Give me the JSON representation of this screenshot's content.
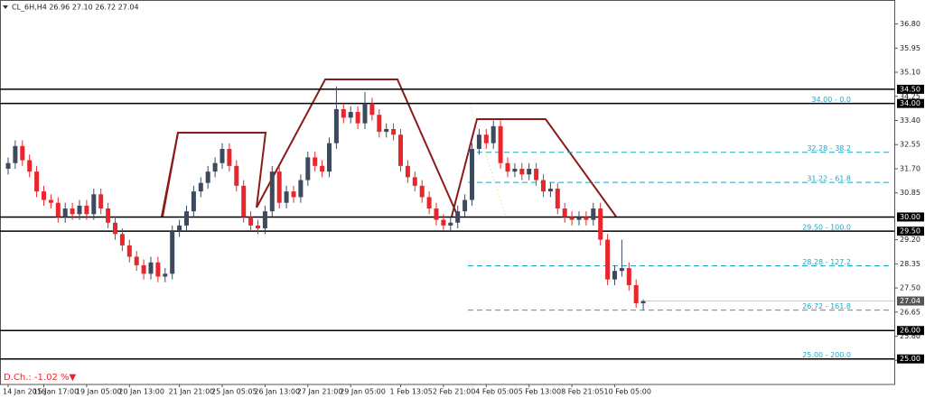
{
  "chart_data": {
    "type": "candlestick",
    "title": "CL_6H,H4  26.96 27.10 26.72 27.04",
    "annotation": "D.Ch.: -1.02 %▼",
    "categories": [
      "14 Jan 2016",
      null,
      null,
      null,
      null,
      "15 Jan 17:00",
      null,
      null,
      null,
      null,
      null,
      "19 Jan 05:00",
      null,
      null,
      null,
      null,
      null,
      "20 Jan 13:00",
      null,
      null,
      null,
      null,
      null,
      null,
      "21 Jan 21:00",
      null,
      null,
      null,
      null,
      null,
      "25 Jan 05:05",
      null,
      null,
      null,
      null,
      null,
      "26 Jan 13:00",
      null,
      null,
      null,
      null,
      null,
      "27 Jan 21:00",
      null,
      null,
      null,
      null,
      null,
      "29 Jan 05:00",
      null,
      null,
      null,
      null,
      null,
      null,
      "1 Feb 13:05",
      null,
      null,
      null,
      null,
      null,
      "2 Feb 21:00",
      null,
      null,
      null,
      null,
      null,
      "4 Feb 05:00",
      null,
      null,
      null,
      null,
      null,
      "5 Feb 13:00",
      null,
      null,
      null,
      null,
      null,
      "8 Feb 21:05",
      null,
      null,
      null,
      null,
      null,
      "10 Feb 05:00",
      null,
      null,
      null,
      null
    ],
    "open": [
      31.7,
      31.9,
      32.5,
      32.0,
      31.6,
      30.9,
      30.6,
      30.5,
      30.0,
      30.3,
      30.1,
      30.4,
      30.1,
      30.8,
      30.3,
      29.8,
      29.4,
      29.0,
      28.6,
      28.3,
      28.0,
      28.4,
      27.9,
      28.0,
      29.5,
      29.7,
      30.2,
      30.9,
      31.2,
      31.6,
      31.9,
      32.4,
      31.8,
      31.1,
      30.0,
      29.7,
      29.6,
      30.2,
      31.6,
      30.5,
      30.9,
      30.7,
      31.3,
      32.1,
      31.8,
      31.6,
      32.6,
      33.8,
      33.5,
      33.7,
      33.3,
      34.0,
      33.6,
      33.0,
      33.1,
      32.9,
      31.8,
      31.4,
      31.1,
      30.7,
      30.3,
      29.9,
      29.7,
      29.8,
      30.2,
      30.6,
      32.4,
      32.9,
      32.6,
      33.2,
      31.9,
      31.6,
      31.7,
      31.5,
      31.7,
      31.3,
      30.9,
      31.0,
      30.3,
      30.0,
      29.9,
      30.0,
      29.9,
      30.3,
      29.2,
      27.8,
      28.1,
      28.2,
      27.6,
      26.96
    ],
    "high": [
      32.1,
      32.7,
      32.7,
      32.2,
      31.8,
      31.1,
      30.8,
      30.7,
      30.5,
      30.5,
      30.6,
      30.6,
      31.0,
      31.0,
      30.5,
      30.0,
      29.6,
      29.2,
      28.8,
      28.5,
      28.6,
      28.6,
      28.2,
      29.7,
      29.9,
      30.4,
      31.1,
      31.4,
      31.8,
      32.1,
      32.6,
      32.6,
      32.0,
      31.3,
      30.2,
      29.9,
      30.4,
      31.8,
      31.8,
      31.1,
      31.1,
      31.5,
      32.3,
      32.3,
      32.0,
      32.8,
      34.6,
      34.0,
      33.9,
      33.9,
      34.4,
      34.2,
      33.8,
      33.3,
      33.3,
      33.1,
      32.0,
      31.6,
      31.3,
      30.9,
      30.5,
      30.1,
      30.0,
      30.4,
      30.8,
      32.6,
      33.1,
      33.1,
      33.4,
      33.4,
      32.1,
      31.9,
      31.9,
      31.9,
      31.9,
      31.5,
      31.2,
      31.2,
      30.5,
      30.2,
      30.2,
      30.2,
      30.5,
      30.5,
      29.4,
      28.3,
      29.2,
      28.4,
      27.8,
      27.1
    ],
    "low": [
      31.5,
      31.7,
      31.8,
      31.4,
      30.7,
      30.4,
      30.3,
      29.8,
      29.8,
      29.9,
      29.9,
      29.9,
      29.9,
      30.1,
      29.6,
      29.2,
      28.8,
      28.4,
      28.1,
      27.8,
      27.8,
      27.7,
      27.7,
      27.8,
      29.3,
      29.5,
      30.0,
      30.7,
      31.0,
      31.4,
      31.7,
      31.6,
      30.9,
      29.8,
      29.5,
      29.4,
      29.4,
      30.0,
      30.3,
      30.3,
      30.5,
      30.5,
      31.1,
      31.6,
      31.4,
      31.4,
      32.4,
      33.3,
      33.3,
      33.1,
      33.1,
      33.4,
      32.8,
      32.8,
      32.7,
      31.6,
      31.2,
      30.9,
      30.5,
      30.1,
      29.7,
      29.5,
      29.5,
      29.6,
      30.0,
      30.4,
      32.2,
      32.4,
      32.4,
      31.7,
      31.4,
      31.4,
      31.3,
      31.3,
      31.1,
      30.7,
      30.7,
      30.1,
      29.8,
      29.7,
      29.7,
      29.7,
      29.7,
      29.0,
      27.6,
      27.6,
      27.9,
      27.4,
      26.8,
      26.72
    ],
    "close": [
      31.9,
      32.5,
      32.0,
      31.6,
      30.9,
      30.6,
      30.5,
      30.0,
      30.3,
      30.1,
      30.4,
      30.1,
      30.8,
      30.3,
      29.8,
      29.4,
      29.0,
      28.6,
      28.3,
      28.0,
      28.4,
      27.9,
      28.0,
      29.5,
      29.7,
      30.2,
      30.9,
      31.2,
      31.6,
      31.9,
      32.4,
      31.8,
      31.1,
      30.0,
      29.7,
      29.6,
      30.2,
      31.6,
      30.5,
      30.9,
      30.7,
      31.3,
      32.1,
      31.8,
      31.6,
      32.6,
      33.8,
      33.5,
      33.7,
      33.3,
      34.0,
      33.6,
      33.0,
      33.1,
      32.9,
      31.8,
      31.4,
      31.1,
      30.7,
      30.3,
      29.9,
      29.7,
      29.8,
      30.2,
      30.6,
      32.4,
      32.9,
      32.6,
      33.2,
      31.9,
      31.6,
      31.7,
      31.5,
      31.7,
      31.3,
      30.9,
      31.0,
      30.3,
      30.0,
      29.9,
      30.0,
      29.9,
      30.3,
      29.2,
      27.8,
      28.1,
      28.2,
      27.6,
      26.96,
      27.04
    ],
    "up_color": "#3d4a5c",
    "down_color": "#e8262b",
    "ylim": [
      24.1,
      37.2
    ],
    "yticks": [
      {
        "value": 36.8,
        "label": "36.80"
      },
      {
        "value": 35.95,
        "label": "35.95"
      },
      {
        "value": 35.1,
        "label": "35.10"
      },
      {
        "value": 34.25,
        "label": "34.25"
      },
      {
        "value": 33.4,
        "label": "33.40"
      },
      {
        "value": 32.55,
        "label": "32.55"
      },
      {
        "value": 31.7,
        "label": "31.70"
      },
      {
        "value": 30.85,
        "label": "30.85"
      },
      {
        "value": 29.2,
        "label": "29.20"
      },
      {
        "value": 28.35,
        "label": "28.35"
      },
      {
        "value": 27.5,
        "label": "27.50"
      },
      {
        "value": 26.65,
        "label": "26.65"
      },
      {
        "value": 25.8,
        "label": "25.80"
      },
      {
        "value": 24.95,
        "label": "24.95"
      }
    ],
    "levels": [
      {
        "value": 34.5,
        "label": "34.50"
      },
      {
        "value": 34.0,
        "label": "34.00"
      },
      {
        "value": 30.0,
        "label": "30.00"
      },
      {
        "value": 29.5,
        "label": "29.50"
      },
      {
        "value": 26.0,
        "label": "26.00"
      },
      {
        "value": 25.0,
        "label": "25.00"
      }
    ],
    "fib_levels": [
      {
        "value": 34.0,
        "label": "34.00 - 0.0"
      },
      {
        "value": 32.28,
        "label": "32.28 - 38.2"
      },
      {
        "value": 31.22,
        "label": "31.22 - 61.8"
      },
      {
        "value": 29.5,
        "label": "29.50 - 100.0"
      },
      {
        "value": 28.28,
        "label": "28.28 - 127.2"
      },
      {
        "value": 26.72,
        "label": "26.72 - 161.8"
      },
      {
        "value": 25.0,
        "label": "25.00 - 200.0"
      }
    ],
    "fib_color": "#1aa8c8",
    "last_price": {
      "value": 27.04,
      "label": "27.04"
    }
  }
}
